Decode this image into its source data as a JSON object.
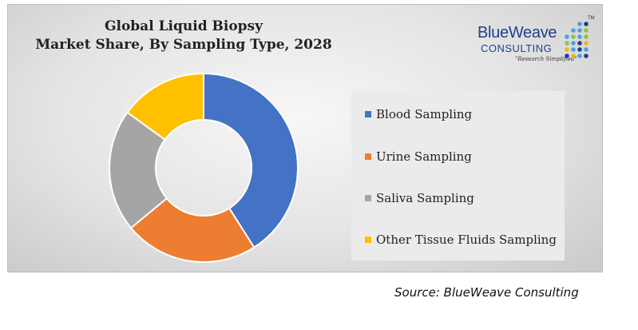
{
  "chart_data": {
    "type": "pie",
    "variant": "donut",
    "title": [
      "Global Liquid Biopsy",
      "Market Share, By Sampling Type, 2028"
    ],
    "series": [
      {
        "name": "Blood Sampling",
        "value": 41,
        "color": "#4472c4"
      },
      {
        "name": "Urine Sampling",
        "value": 23,
        "color": "#ed7d31"
      },
      {
        "name": "Saliva Sampling",
        "value": 21,
        "color": "#a5a5a5"
      },
      {
        "name": "Other Tissue Fluids Sampling",
        "value": 15,
        "color": "#ffc000"
      }
    ],
    "legend": "right"
  },
  "logo": {
    "main": "BlueWeave",
    "sub": "CONSULTING",
    "tagline": "\"Research Simplified\"",
    "tm": "TM",
    "colors": [
      "#1f3f8f",
      "#4aa3df",
      "#8cc63f",
      "#f2b418"
    ]
  },
  "source": "Source: BlueWeave Consulting"
}
